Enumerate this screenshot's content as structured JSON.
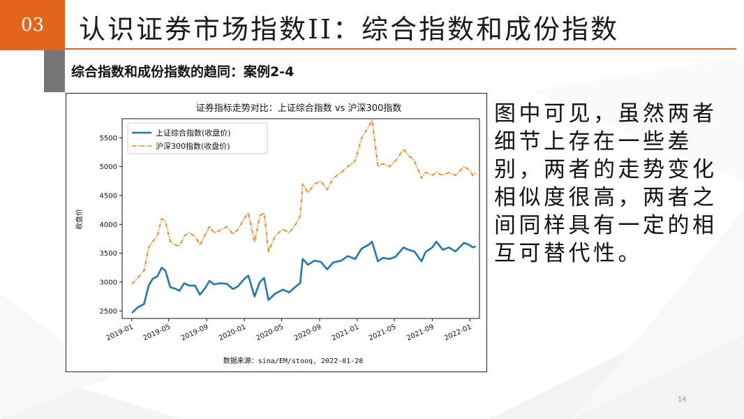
{
  "slide": {
    "number": "03",
    "title": "认识证券市场指数II：综合指数和成份指数",
    "subtitle": "综合指数和成份指数的趋同：案例2-4",
    "description": "图中可见，虽然两者细节上存在一些差别，两者的走势变化相似度很高，两者之间同样具有一定的相互可替代性。",
    "page_number": "14",
    "accent_color": "#e3661c",
    "bar_color": "#777777"
  },
  "chart_data": {
    "type": "line",
    "title": "证券指标走势对比：上证综合指数 vs 沪深300指数",
    "ylabel": "收盘价",
    "xlabel": "",
    "source_note": "数据来源：sina/EM/stooq, 2022-01-28",
    "x_ticks": [
      "2019-01",
      "2019-05",
      "2019-09",
      "2020-01",
      "2020-05",
      "2020-09",
      "2021-01",
      "2021-05",
      "2021-09",
      "2022-01"
    ],
    "y_ticks": [
      2500,
      3000,
      3500,
      4000,
      4500,
      5000,
      5500
    ],
    "ylim": [
      2370,
      5830
    ],
    "xlim": [
      "2018-12",
      "2022-02"
    ],
    "grid": false,
    "legend_position": "top-left",
    "series": [
      {
        "name": "上证综合指数(收盘价)",
        "color": "#1f77b4",
        "line_style": "solid",
        "points": [
          [
            "2019-01-02",
            2465
          ],
          [
            "2019-01-20",
            2560
          ],
          [
            "2019-02-10",
            2620
          ],
          [
            "2019-02-25",
            2940
          ],
          [
            "2019-03-10",
            3060
          ],
          [
            "2019-03-25",
            3100
          ],
          [
            "2019-04-08",
            3250
          ],
          [
            "2019-04-20",
            3200
          ],
          [
            "2019-05-06",
            2910
          ],
          [
            "2019-05-20",
            2890
          ],
          [
            "2019-06-05",
            2850
          ],
          [
            "2019-06-20",
            2980
          ],
          [
            "2019-07-05",
            2940
          ],
          [
            "2019-07-25",
            2940
          ],
          [
            "2019-08-10",
            2780
          ],
          [
            "2019-08-25",
            2880
          ],
          [
            "2019-09-10",
            3020
          ],
          [
            "2019-09-25",
            2960
          ],
          [
            "2019-10-15",
            2980
          ],
          [
            "2019-11-05",
            2970
          ],
          [
            "2019-11-25",
            2880
          ],
          [
            "2019-12-10",
            2920
          ],
          [
            "2019-12-31",
            3050
          ],
          [
            "2020-01-14",
            3110
          ],
          [
            "2020-02-03",
            2750
          ],
          [
            "2020-02-20",
            3000
          ],
          [
            "2020-03-05",
            3070
          ],
          [
            "2020-03-19",
            2690
          ],
          [
            "2020-04-10",
            2800
          ],
          [
            "2020-05-05",
            2870
          ],
          [
            "2020-05-25",
            2820
          ],
          [
            "2020-06-15",
            2920
          ],
          [
            "2020-06-30",
            2980
          ],
          [
            "2020-07-08",
            3400
          ],
          [
            "2020-07-25",
            3300
          ],
          [
            "2020-08-15",
            3370
          ],
          [
            "2020-09-05",
            3350
          ],
          [
            "2020-09-25",
            3220
          ],
          [
            "2020-10-15",
            3340
          ],
          [
            "2020-11-10",
            3370
          ],
          [
            "2020-12-01",
            3450
          ],
          [
            "2020-12-25",
            3400
          ],
          [
            "2021-01-15",
            3580
          ],
          [
            "2021-02-08",
            3650
          ],
          [
            "2021-02-18",
            3700
          ],
          [
            "2021-03-09",
            3360
          ],
          [
            "2021-03-25",
            3420
          ],
          [
            "2021-04-15",
            3400
          ],
          [
            "2021-05-05",
            3440
          ],
          [
            "2021-05-31",
            3600
          ],
          [
            "2021-06-15",
            3560
          ],
          [
            "2021-07-05",
            3530
          ],
          [
            "2021-07-28",
            3360
          ],
          [
            "2021-08-10",
            3520
          ],
          [
            "2021-09-01",
            3600
          ],
          [
            "2021-09-14",
            3700
          ],
          [
            "2021-10-05",
            3560
          ],
          [
            "2021-10-25",
            3600
          ],
          [
            "2021-11-15",
            3530
          ],
          [
            "2021-12-13",
            3680
          ],
          [
            "2021-12-31",
            3640
          ],
          [
            "2022-01-10",
            3600
          ],
          [
            "2022-01-20",
            3620
          ]
        ]
      },
      {
        "name": "沪深300指数(收盘价)",
        "color": "#ff7f0e",
        "line_style": "dashdot",
        "points": [
          [
            "2019-01-02",
            2970
          ],
          [
            "2019-01-20",
            3070
          ],
          [
            "2019-02-10",
            3200
          ],
          [
            "2019-02-25",
            3600
          ],
          [
            "2019-03-10",
            3700
          ],
          [
            "2019-03-25",
            3800
          ],
          [
            "2019-04-08",
            4100
          ],
          [
            "2019-04-20",
            4050
          ],
          [
            "2019-05-06",
            3700
          ],
          [
            "2019-05-20",
            3650
          ],
          [
            "2019-06-05",
            3620
          ],
          [
            "2019-06-20",
            3800
          ],
          [
            "2019-07-05",
            3850
          ],
          [
            "2019-07-25",
            3800
          ],
          [
            "2019-08-10",
            3640
          ],
          [
            "2019-08-25",
            3800
          ],
          [
            "2019-09-10",
            3970
          ],
          [
            "2019-09-25",
            3850
          ],
          [
            "2019-10-15",
            3900
          ],
          [
            "2019-11-05",
            3960
          ],
          [
            "2019-11-25",
            3830
          ],
          [
            "2019-12-10",
            3900
          ],
          [
            "2019-12-31",
            4100
          ],
          [
            "2020-01-14",
            4200
          ],
          [
            "2020-02-03",
            3690
          ],
          [
            "2020-02-20",
            4150
          ],
          [
            "2020-03-05",
            4200
          ],
          [
            "2020-03-19",
            3530
          ],
          [
            "2020-04-10",
            3800
          ],
          [
            "2020-05-05",
            3920
          ],
          [
            "2020-05-25",
            3850
          ],
          [
            "2020-06-15",
            4000
          ],
          [
            "2020-06-30",
            4150
          ],
          [
            "2020-07-08",
            4700
          ],
          [
            "2020-07-25",
            4550
          ],
          [
            "2020-08-15",
            4700
          ],
          [
            "2020-09-05",
            4750
          ],
          [
            "2020-09-25",
            4600
          ],
          [
            "2020-10-15",
            4800
          ],
          [
            "2020-11-10",
            4900
          ],
          [
            "2020-12-01",
            5000
          ],
          [
            "2020-12-25",
            5100
          ],
          [
            "2021-01-15",
            5500
          ],
          [
            "2021-02-08",
            5700
          ],
          [
            "2021-02-18",
            5800
          ],
          [
            "2021-03-09",
            5000
          ],
          [
            "2021-03-25",
            5050
          ],
          [
            "2021-04-15",
            5000
          ],
          [
            "2021-05-05",
            5100
          ],
          [
            "2021-05-31",
            5300
          ],
          [
            "2021-06-15",
            5200
          ],
          [
            "2021-07-05",
            5100
          ],
          [
            "2021-07-28",
            4800
          ],
          [
            "2021-08-10",
            4900
          ],
          [
            "2021-09-01",
            4850
          ],
          [
            "2021-09-14",
            4900
          ],
          [
            "2021-10-05",
            4850
          ],
          [
            "2021-10-25",
            4900
          ],
          [
            "2021-11-15",
            4850
          ],
          [
            "2021-12-13",
            5000
          ],
          [
            "2021-12-31",
            4940
          ],
          [
            "2022-01-10",
            4850
          ],
          [
            "2022-01-20",
            4900
          ]
        ]
      }
    ]
  }
}
